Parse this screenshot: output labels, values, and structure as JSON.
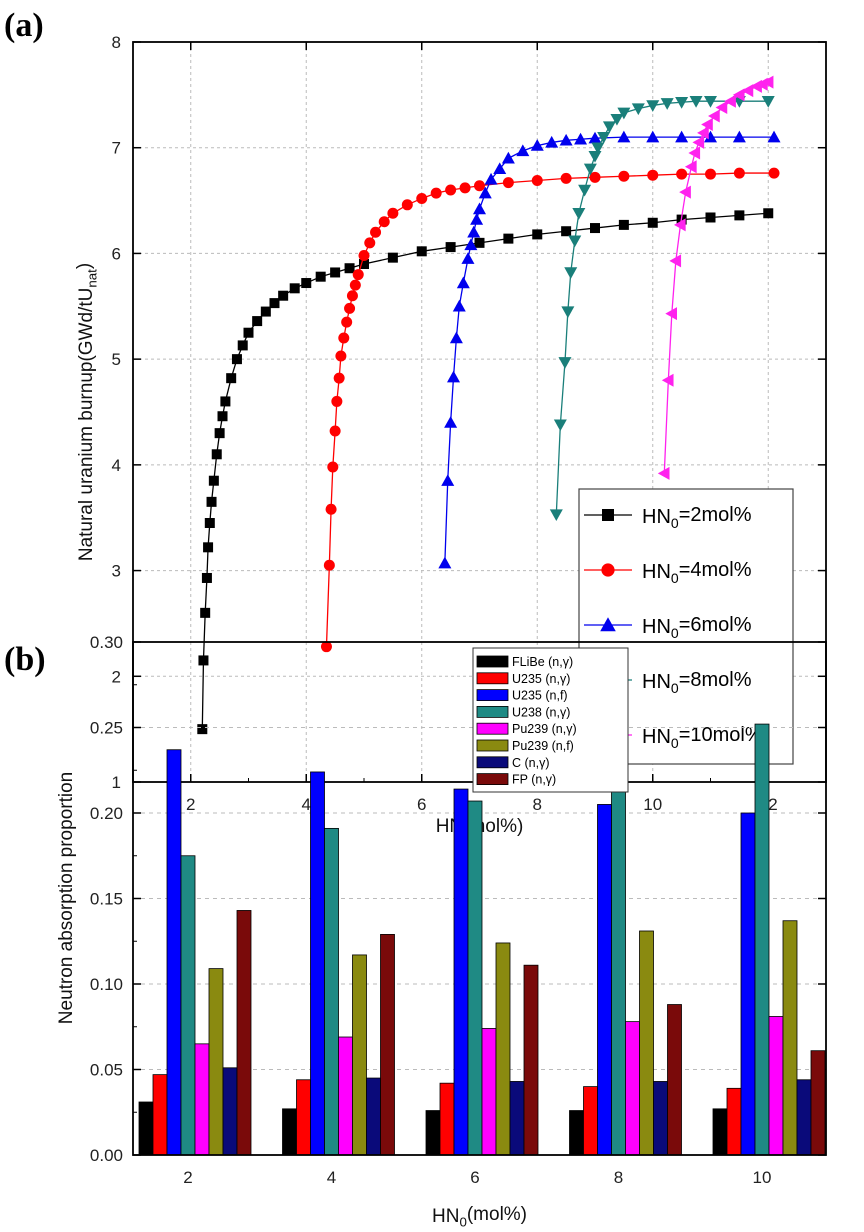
{
  "chart_data": [
    {
      "panel_label": "(a)",
      "type": "line",
      "xlabel": "HN(mol%)",
      "ylabel": {
        "main": "Natural uranium burnup(GWd/tU",
        "sub": "nat",
        "end": ")"
      },
      "xlim": [
        1,
        13
      ],
      "ylim": [
        1,
        8
      ],
      "xticks": [
        2,
        4,
        6,
        8,
        10,
        12
      ],
      "yticks": [
        1,
        2,
        3,
        4,
        5,
        6,
        7,
        8
      ],
      "grid": true,
      "legend_position": "bottom-right",
      "series": [
        {
          "name": {
            "prefix": "HN",
            "sub": "0",
            "suffix": "=2mol%"
          },
          "color": "#000000",
          "marker": "square",
          "points": [
            [
              2.2,
              1.5
            ],
            [
              2.22,
              2.15
            ],
            [
              2.25,
              2.6
            ],
            [
              2.28,
              2.93
            ],
            [
              2.3,
              3.22
            ],
            [
              2.33,
              3.45
            ],
            [
              2.36,
              3.65
            ],
            [
              2.4,
              3.85
            ],
            [
              2.45,
              4.1
            ],
            [
              2.5,
              4.3
            ],
            [
              2.55,
              4.46
            ],
            [
              2.6,
              4.6
            ],
            [
              2.7,
              4.82
            ],
            [
              2.8,
              5.0
            ],
            [
              2.9,
              5.13
            ],
            [
              3,
              5.25
            ],
            [
              3.15,
              5.36
            ],
            [
              3.3,
              5.45
            ],
            [
              3.45,
              5.53
            ],
            [
              3.6,
              5.6
            ],
            [
              3.8,
              5.67
            ],
            [
              4,
              5.72
            ],
            [
              4.25,
              5.78
            ],
            [
              4.5,
              5.82
            ],
            [
              4.75,
              5.86
            ],
            [
              5,
              5.9
            ],
            [
              5.5,
              5.96
            ],
            [
              6,
              6.02
            ],
            [
              6.5,
              6.06
            ],
            [
              7,
              6.1
            ],
            [
              7.5,
              6.14
            ],
            [
              8,
              6.18
            ],
            [
              8.5,
              6.21
            ],
            [
              9,
              6.24
            ],
            [
              9.5,
              6.27
            ],
            [
              10,
              6.29
            ],
            [
              10.5,
              6.32
            ],
            [
              11,
              6.34
            ],
            [
              11.5,
              6.36
            ],
            [
              12,
              6.38
            ]
          ]
        },
        {
          "name": {
            "prefix": "HN",
            "sub": "0",
            "suffix": "=4mol%"
          },
          "color": "#ff0000",
          "marker": "circle",
          "points": [
            [
              4.35,
              2.28
            ],
            [
              4.4,
              3.05
            ],
            [
              4.43,
              3.58
            ],
            [
              4.46,
              3.98
            ],
            [
              4.5,
              4.32
            ],
            [
              4.53,
              4.6
            ],
            [
              4.57,
              4.82
            ],
            [
              4.6,
              5.03
            ],
            [
              4.65,
              5.2
            ],
            [
              4.7,
              5.35
            ],
            [
              4.75,
              5.48
            ],
            [
              4.8,
              5.6
            ],
            [
              4.85,
              5.7
            ],
            [
              4.9,
              5.8
            ],
            [
              5,
              5.98
            ],
            [
              5.1,
              6.1
            ],
            [
              5.2,
              6.2
            ],
            [
              5.35,
              6.3
            ],
            [
              5.5,
              6.38
            ],
            [
              5.75,
              6.46
            ],
            [
              6,
              6.52
            ],
            [
              6.25,
              6.57
            ],
            [
              6.5,
              6.6
            ],
            [
              6.75,
              6.62
            ],
            [
              7,
              6.64
            ],
            [
              7.5,
              6.67
            ],
            [
              8,
              6.69
            ],
            [
              8.5,
              6.71
            ],
            [
              9,
              6.72
            ],
            [
              9.5,
              6.73
            ],
            [
              10,
              6.74
            ],
            [
              10.5,
              6.75
            ],
            [
              11,
              6.75
            ],
            [
              11.5,
              6.76
            ],
            [
              12.1,
              6.76
            ]
          ]
        },
        {
          "name": {
            "prefix": "HN",
            "sub": "0",
            "suffix": "=6mol%"
          },
          "color": "#0000ee",
          "marker": "triangle-up",
          "points": [
            [
              6.4,
              3.07
            ],
            [
              6.45,
              3.85
            ],
            [
              6.5,
              4.4
            ],
            [
              6.55,
              4.83
            ],
            [
              6.6,
              5.2
            ],
            [
              6.65,
              5.5
            ],
            [
              6.72,
              5.72
            ],
            [
              6.8,
              5.95
            ],
            [
              6.85,
              6.08
            ],
            [
              6.9,
              6.2
            ],
            [
              6.95,
              6.32
            ],
            [
              7,
              6.42
            ],
            [
              7.1,
              6.57
            ],
            [
              7.2,
              6.7
            ],
            [
              7.35,
              6.8
            ],
            [
              7.5,
              6.9
            ],
            [
              7.75,
              6.97
            ],
            [
              8,
              7.02
            ],
            [
              8.25,
              7.05
            ],
            [
              8.5,
              7.07
            ],
            [
              8.75,
              7.08
            ],
            [
              9,
              7.09
            ],
            [
              9.5,
              7.1
            ],
            [
              10,
              7.1
            ],
            [
              10.5,
              7.1
            ],
            [
              11,
              7.1
            ],
            [
              11.5,
              7.1
            ],
            [
              12.1,
              7.1
            ]
          ]
        },
        {
          "name": {
            "prefix": "HN",
            "sub": "0",
            "suffix": "=8mol%"
          },
          "color": "#1a7f7a",
          "marker": "triangle-down",
          "points": [
            [
              8.33,
              3.53
            ],
            [
              8.4,
              4.38
            ],
            [
              8.48,
              4.97
            ],
            [
              8.53,
              5.45
            ],
            [
              8.58,
              5.82
            ],
            [
              8.65,
              6.12
            ],
            [
              8.72,
              6.38
            ],
            [
              8.82,
              6.6
            ],
            [
              8.92,
              6.8
            ],
            [
              9.0,
              6.92
            ],
            [
              9.05,
              7.0
            ],
            [
              9.15,
              7.1
            ],
            [
              9.25,
              7.2
            ],
            [
              9.38,
              7.27
            ],
            [
              9.5,
              7.33
            ],
            [
              9.75,
              7.37
            ],
            [
              10,
              7.4
            ],
            [
              10.25,
              7.42
            ],
            [
              10.5,
              7.43
            ],
            [
              10.75,
              7.44
            ],
            [
              11,
              7.44
            ],
            [
              11.5,
              7.44
            ],
            [
              12,
              7.44
            ]
          ]
        },
        {
          "name": {
            "prefix": "HN",
            "sub": "0",
            "suffix": "=10mol%"
          },
          "color": "#ff22ee",
          "marker": "triangle-left",
          "points": [
            [
              10.2,
              3.92
            ],
            [
              10.27,
              4.8
            ],
            [
              10.33,
              5.43
            ],
            [
              10.4,
              5.93
            ],
            [
              10.48,
              6.27
            ],
            [
              10.57,
              6.58
            ],
            [
              10.67,
              6.82
            ],
            [
              10.73,
              6.95
            ],
            [
              10.8,
              7.05
            ],
            [
              10.88,
              7.14
            ],
            [
              10.95,
              7.22
            ],
            [
              11.07,
              7.3
            ],
            [
              11.2,
              7.38
            ],
            [
              11.35,
              7.44
            ],
            [
              11.5,
              7.5
            ],
            [
              11.65,
              7.54
            ],
            [
              11.8,
              7.58
            ],
            [
              11.9,
              7.6
            ],
            [
              12,
              7.62
            ]
          ]
        }
      ]
    },
    {
      "panel_label": "(b)",
      "type": "bar",
      "xlabel": {
        "main": "HN",
        "sub": "0",
        "end": "(mol%)"
      },
      "ylabel": "Neutron absorption proportion",
      "categories": [
        "2",
        "4",
        "6",
        "8",
        "10"
      ],
      "ylim": [
        0,
        0.3
      ],
      "yticks": [
        "0.00",
        "0.05",
        "0.10",
        "0.15",
        "0.20",
        "0.25",
        "0.30"
      ],
      "grid": true,
      "legend_position": "top-center",
      "series": [
        {
          "name": "FLiBe (n,γ)",
          "color": "#000000",
          "values": [
            0.031,
            0.027,
            0.026,
            0.026,
            0.027
          ]
        },
        {
          "name": "U235 (n,γ)",
          "color": "#ff0000",
          "values": [
            0.047,
            0.044,
            0.042,
            0.04,
            0.039
          ]
        },
        {
          "name": "U235 (n,f)",
          "color": "#0000ff",
          "values": [
            0.237,
            0.224,
            0.214,
            0.205,
            0.2
          ]
        },
        {
          "name": "U238 (n,γ)",
          "color": "#1f8a84",
          "values": [
            0.175,
            0.191,
            0.207,
            0.227,
            0.252
          ]
        },
        {
          "name": "Pu239 (n,γ)",
          "color": "#ff00ff",
          "values": [
            0.065,
            0.069,
            0.074,
            0.078,
            0.081
          ]
        },
        {
          "name": "Pu239 (n,f)",
          "color": "#8a8a10",
          "values": [
            0.109,
            0.117,
            0.124,
            0.131,
            0.137
          ]
        },
        {
          "name": "C (n,γ)",
          "color": "#0a0a7a",
          "values": [
            0.051,
            0.045,
            0.043,
            0.043,
            0.044
          ]
        },
        {
          "name": "FP (n,γ)",
          "color": "#7a0a0a",
          "values": [
            0.143,
            0.129,
            0.111,
            0.088,
            0.061
          ]
        }
      ]
    }
  ]
}
